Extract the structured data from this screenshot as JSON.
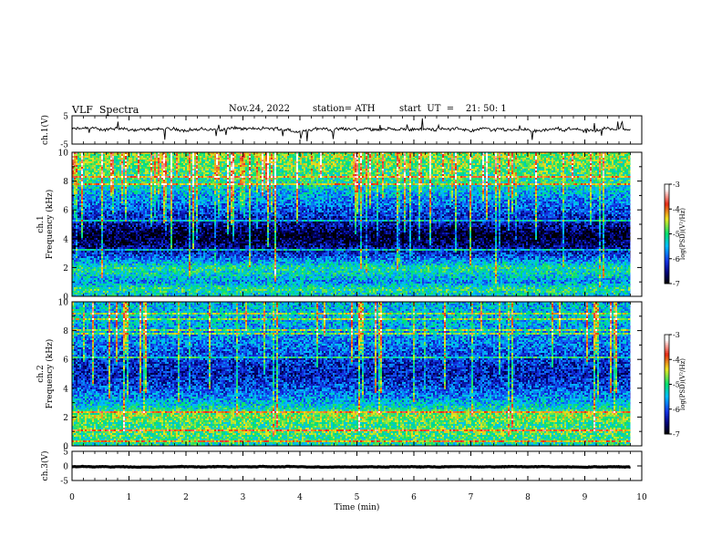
{
  "header": {
    "title": "VLF  Spectra",
    "date": "Nov.24, 2022",
    "station": "station= ATH",
    "start_ut": "start  UT  =    21: 50: 1"
  },
  "palette": {
    "black": "#000000",
    "darkblue": "#00008b",
    "blue": "#1f3cff",
    "cyan": "#00c8ff",
    "green": "#00e060",
    "yellow": "#f0e020",
    "red": "#e01010",
    "white": "#ffffff"
  },
  "chart_data": [
    {
      "type": "line",
      "name": "ch1-waveform",
      "ylabel": "ch.1(V)",
      "ylim": [
        -5,
        5
      ],
      "y_ticks": [
        "5",
        "-5"
      ],
      "xlim": [
        0,
        10
      ],
      "baseline": 0.2,
      "data_end": 9.8
    },
    {
      "type": "heatmap",
      "name": "ch1-spectrogram",
      "ylabel": "ch.1\nFrequency (kHz)",
      "ylabel_line1": "ch.1",
      "ylabel_line2": "Frequency (kHz)",
      "ylim": [
        0,
        10
      ],
      "y_ticks": [
        "0",
        "2",
        "4",
        "6",
        "8",
        "10"
      ],
      "xlim": [
        0,
        10
      ],
      "data_end": 9.8,
      "colorbar": {
        "label": "log(PSD)(V²/Hz)",
        "ticks": [
          "-3",
          "-4",
          "-5",
          "-6",
          "-7"
        ],
        "range": [
          -7,
          -3
        ]
      },
      "profile": [
        {
          "f": 0.0,
          "v": -5.4
        },
        {
          "f": 0.5,
          "v": -5.0
        },
        {
          "f": 1.0,
          "v": -5.7
        },
        {
          "f": 1.5,
          "v": -5.3
        },
        {
          "f": 2.0,
          "v": -5.1
        },
        {
          "f": 2.4,
          "v": -5.6
        },
        {
          "f": 3.0,
          "v": -6.2
        },
        {
          "f": 3.6,
          "v": -6.6
        },
        {
          "f": 4.2,
          "v": -6.9
        },
        {
          "f": 5.0,
          "v": -6.4
        },
        {
          "f": 6.0,
          "v": -6.0
        },
        {
          "f": 7.0,
          "v": -5.6
        },
        {
          "f": 8.0,
          "v": -5.1
        },
        {
          "f": 9.0,
          "v": -4.8
        },
        {
          "f": 10.0,
          "v": -4.7
        }
      ]
    },
    {
      "type": "heatmap",
      "name": "ch2-spectrogram",
      "ylabel": "ch.2\nFrequency (kHz)",
      "ylabel_line1": "ch.2",
      "ylabel_line2": "Frequency (kHz)",
      "ylim": [
        0,
        10
      ],
      "y_ticks": [
        "0",
        "2",
        "4",
        "6",
        "8",
        "10"
      ],
      "xlim": [
        0,
        10
      ],
      "data_end": 9.8,
      "colorbar": {
        "label": "log(PSD)(V²/Hz)",
        "ticks": [
          "-3",
          "-4",
          "-5",
          "-6",
          "-7"
        ],
        "range": [
          -7,
          -3
        ]
      },
      "profile": [
        {
          "f": 0.0,
          "v": -5.2
        },
        {
          "f": 0.5,
          "v": -5.0
        },
        {
          "f": 1.0,
          "v": -4.8
        },
        {
          "f": 1.5,
          "v": -5.0
        },
        {
          "f": 2.0,
          "v": -4.6
        },
        {
          "f": 2.6,
          "v": -5.2
        },
        {
          "f": 3.2,
          "v": -5.6
        },
        {
          "f": 4.0,
          "v": -6.0
        },
        {
          "f": 5.0,
          "v": -6.3
        },
        {
          "f": 6.0,
          "v": -6.1
        },
        {
          "f": 7.0,
          "v": -5.8
        },
        {
          "f": 8.0,
          "v": -5.6
        },
        {
          "f": 9.0,
          "v": -5.5
        },
        {
          "f": 10.0,
          "v": -5.5
        }
      ]
    },
    {
      "type": "line",
      "name": "ch3-waveform",
      "ylabel": "ch.3(V)",
      "ylim": [
        -5,
        5
      ],
      "y_ticks": [
        "5",
        "0",
        "-5"
      ],
      "xlim": [
        0,
        10
      ],
      "baseline": -0.3,
      "data_end": 9.8,
      "xlabel": "Time  (min)",
      "x_ticks": [
        "0",
        "1",
        "2",
        "3",
        "4",
        "5",
        "6",
        "7",
        "8",
        "9",
        "10"
      ]
    }
  ]
}
